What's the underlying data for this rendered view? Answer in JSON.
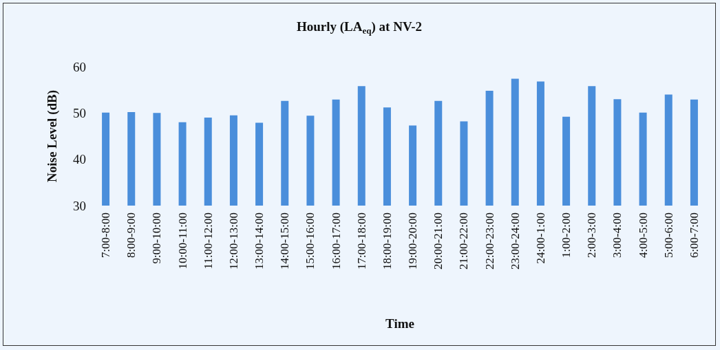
{
  "chart_data": {
    "type": "bar",
    "title": "Hourly (LA$_{eq}$) at NV-2",
    "xlabel": "Time",
    "ylabel": "Noise Level (dB)",
    "categories": [
      "7:00-8:00",
      "8:00-9:00",
      "9:00-10:00",
      "10:00-11:00",
      "11:00-12:00",
      "12:00-13:00",
      "13:00-14:00",
      "14:00-15:00",
      "15:00-16:00",
      "16:00-17:00",
      "17:00-18:00",
      "18:00-19:00",
      "19:00-20:00",
      "20:00-21:00",
      "21:00-22:00",
      "22:00-23:00",
      "23:00-24:00",
      "24:00-1:00",
      "1:00-2:00",
      "2:00-3:00",
      "3:00-4:00",
      "4:00-5:00",
      "5:00-6:00",
      "6:00-7:00"
    ],
    "values": [
      50.1,
      50.2,
      50.0,
      48.0,
      49.0,
      49.5,
      47.9,
      52.6,
      49.4,
      52.9,
      55.8,
      51.2,
      47.3,
      52.6,
      48.2,
      54.8,
      57.4,
      56.8,
      49.2,
      55.8,
      53.0,
      50.1,
      54.0,
      52.9
    ],
    "color": "#4a8edb",
    "ylim": [
      30,
      60
    ],
    "yticks": [
      30,
      40,
      50,
      60
    ]
  }
}
